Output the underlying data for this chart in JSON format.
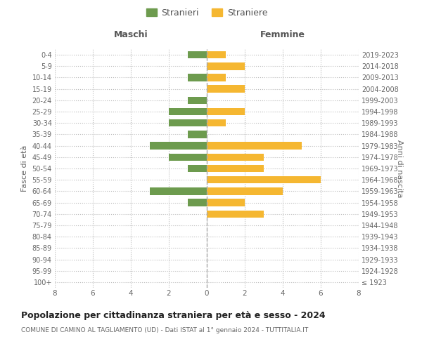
{
  "age_groups": [
    "100+",
    "95-99",
    "90-94",
    "85-89",
    "80-84",
    "75-79",
    "70-74",
    "65-69",
    "60-64",
    "55-59",
    "50-54",
    "45-49",
    "40-44",
    "35-39",
    "30-34",
    "25-29",
    "20-24",
    "15-19",
    "10-14",
    "5-9",
    "0-4"
  ],
  "birth_years": [
    "≤ 1923",
    "1924-1928",
    "1929-1933",
    "1934-1938",
    "1939-1943",
    "1944-1948",
    "1949-1953",
    "1954-1958",
    "1959-1963",
    "1964-1968",
    "1969-1973",
    "1974-1978",
    "1979-1983",
    "1984-1988",
    "1989-1993",
    "1994-1998",
    "1999-2003",
    "2004-2008",
    "2009-2013",
    "2014-2018",
    "2019-2023"
  ],
  "males": [
    0,
    0,
    0,
    0,
    0,
    0,
    0,
    1,
    3,
    0,
    1,
    2,
    3,
    1,
    2,
    2,
    1,
    0,
    1,
    0,
    1
  ],
  "females": [
    0,
    0,
    0,
    0,
    0,
    0,
    3,
    2,
    4,
    6,
    3,
    3,
    5,
    0,
    1,
    2,
    0,
    2,
    1,
    2,
    1
  ],
  "male_color": "#6d9b4e",
  "female_color": "#f5b731",
  "background_color": "#ffffff",
  "grid_color": "#cccccc",
  "title": "Popolazione per cittadinanza straniera per età e sesso - 2024",
  "subtitle": "COMUNE DI CAMINO AL TAGLIAMENTO (UD) - Dati ISTAT al 1° gennaio 2024 - TUTTITALIA.IT",
  "xlabel_left": "Maschi",
  "xlabel_right": "Femmine",
  "ylabel_left": "Fasce di età",
  "ylabel_right": "Anni di nascita",
  "legend_male": "Stranieri",
  "legend_female": "Straniere",
  "xlim": 8
}
